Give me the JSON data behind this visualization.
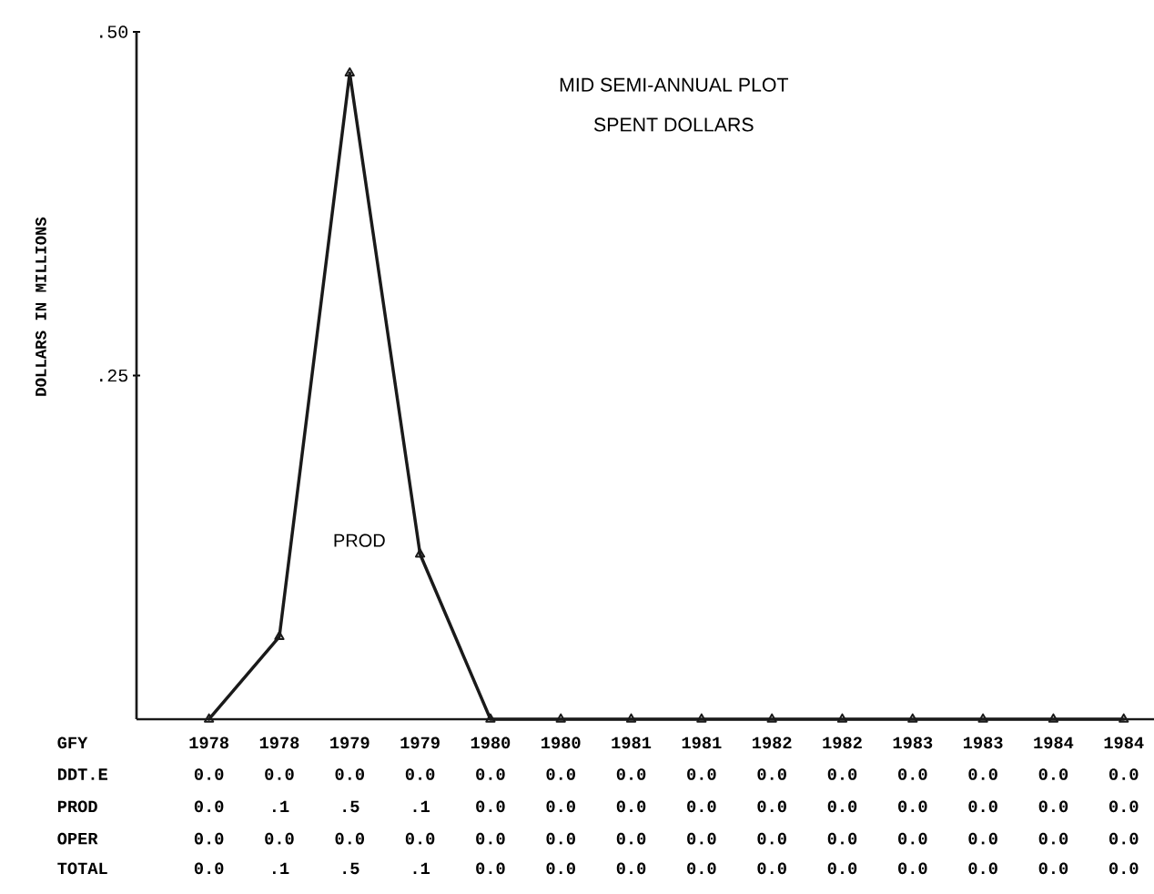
{
  "chart_data": [
    {
      "type": "line",
      "title": "MID SEMI-ANNUAL PLOT",
      "subtitle": "SPENT DOLLARS",
      "xlabel": "GFY",
      "ylabel": "DOLLARS IN MILLIONS",
      "categories": [
        "1978",
        "1978",
        "1979",
        "1979",
        "1980",
        "1980",
        "1981",
        "1981",
        "1982",
        "1982",
        "1983",
        "1983",
        "1984",
        "1984"
      ],
      "ylim": [
        0,
        0.5
      ],
      "yticks": [
        {
          "value": 0.25,
          "label": ".25"
        },
        {
          "value": 0.5,
          "label": ".50"
        }
      ],
      "marker": "triangle",
      "line_style": "solid",
      "series": [
        {
          "name": "PROD",
          "color": "#1a1a1a",
          "values": [
            0,
            0.06,
            0.47,
            0.12,
            0,
            0,
            0,
            0,
            0,
            0,
            0,
            0,
            0,
            0
          ],
          "value_labels": [
            "0.0",
            ".1",
            ".5",
            ".1",
            "0.0",
            "0.0",
            "0.0",
            "0.0",
            "0.0",
            "0.0",
            "0.0",
            "0.0",
            "0.0",
            "0.0"
          ]
        }
      ]
    },
    {
      "type": "other",
      "annotations": [
        "DDT.E",
        "0.0",
        "0.0",
        "0.0",
        "0.0",
        "0.0",
        "0.0",
        "0.0",
        "0.0",
        "0.0",
        "0.0",
        "0.0",
        "0.0",
        "0.0",
        "0.0",
        "OPER",
        "0.0",
        "0.0",
        "0.0",
        "0.0",
        "0.0",
        "0.0",
        "0.0",
        "0.0",
        "0.0",
        "0.0",
        "0.0",
        "0.0",
        "0.0",
        "0.0",
        "TOTAL",
        "0.0",
        ".1",
        ".5",
        ".1",
        "0.0",
        "0.0",
        "0.0",
        "0.0",
        "0.0",
        "0.0",
        "0.0",
        "0.0",
        "0.0",
        "0.0"
      ]
    }
  ]
}
